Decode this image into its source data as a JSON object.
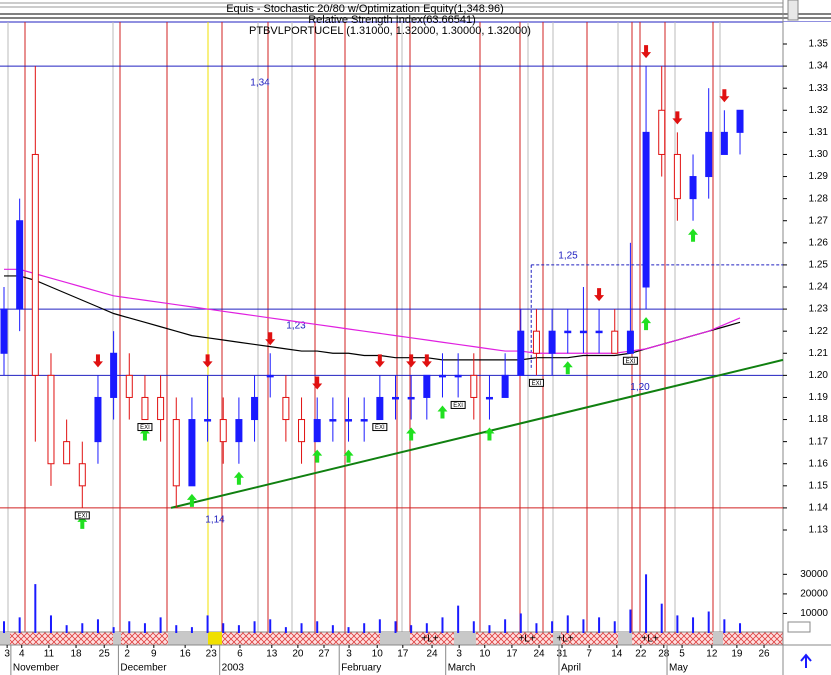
{
  "chart_data": {
    "type": "candlestick",
    "title": "Equis - Stochastic 20/80 w/Optimization Equity(1,348.96)",
    "subtitle": "Relative Strength Index(63.66541)",
    "symbol_label": "PTBVLPORTUCEL (1.31000, 1.32000, 1.30000, 1.32000)",
    "x": [
      0,
      3,
      6,
      9,
      12,
      15,
      18,
      21,
      24,
      27,
      30,
      33,
      36,
      39,
      42,
      45,
      48,
      51,
      54,
      57,
      60,
      63,
      66,
      69,
      72,
      75,
      78,
      81,
      84,
      87,
      90,
      93,
      96,
      99,
      102,
      105,
      108,
      111,
      114,
      117,
      120,
      123,
      126,
      129,
      132,
      135,
      138,
      141
    ],
    "open": [
      1.21,
      1.23,
      1.3,
      1.2,
      1.17,
      1.16,
      1.17,
      1.19,
      1.2,
      1.19,
      1.19,
      1.18,
      1.15,
      1.18,
      1.18,
      1.17,
      1.18,
      1.2,
      1.19,
      1.18,
      1.17,
      1.18,
      1.18,
      1.18,
      1.18,
      1.19,
      1.19,
      1.19,
      1.2,
      1.2,
      1.2,
      1.19,
      1.19,
      1.2,
      1.22,
      1.21,
      1.22,
      1.22,
      1.22,
      1.22,
      1.21,
      1.24,
      1.32,
      1.3,
      1.28,
      1.29,
      1.3,
      1.31
    ],
    "high": [
      1.24,
      1.28,
      1.34,
      1.21,
      1.18,
      1.17,
      1.2,
      1.22,
      1.21,
      1.2,
      1.2,
      1.19,
      1.19,
      1.2,
      1.19,
      1.19,
      1.2,
      1.21,
      1.2,
      1.19,
      1.19,
      1.19,
      1.19,
      1.19,
      1.2,
      1.2,
      1.2,
      1.2,
      1.21,
      1.21,
      1.21,
      1.2,
      1.21,
      1.23,
      1.23,
      1.23,
      1.23,
      1.24,
      1.23,
      1.23,
      1.26,
      1.34,
      1.34,
      1.31,
      1.3,
      1.33,
      1.32,
      1.32
    ],
    "low": [
      1.2,
      1.22,
      1.17,
      1.15,
      1.16,
      1.14,
      1.16,
      1.18,
      1.18,
      1.18,
      1.17,
      1.14,
      1.15,
      1.17,
      1.16,
      1.16,
      1.17,
      1.19,
      1.17,
      1.16,
      1.17,
      1.17,
      1.17,
      1.17,
      1.18,
      1.18,
      1.18,
      1.18,
      1.19,
      1.19,
      1.18,
      1.18,
      1.19,
      1.2,
      1.2,
      1.2,
      1.21,
      1.21,
      1.21,
      1.21,
      1.21,
      1.23,
      1.29,
      1.27,
      1.27,
      1.28,
      1.3,
      1.3
    ],
    "close": [
      1.23,
      1.27,
      1.2,
      1.16,
      1.16,
      1.15,
      1.19,
      1.21,
      1.19,
      1.18,
      1.18,
      1.15,
      1.18,
      1.18,
      1.17,
      1.18,
      1.19,
      1.2,
      1.18,
      1.17,
      1.18,
      1.18,
      1.18,
      1.18,
      1.19,
      1.19,
      1.19,
      1.2,
      1.2,
      1.2,
      1.19,
      1.19,
      1.2,
      1.22,
      1.21,
      1.22,
      1.22,
      1.22,
      1.22,
      1.21,
      1.22,
      1.31,
      1.3,
      1.28,
      1.29,
      1.31,
      1.31,
      1.32
    ],
    "up_color": "#1a1aff",
    "down_color": "#e01010",
    "xlim": [
      0,
      150
    ],
    "ylim": [
      1.13,
      1.35
    ],
    "yticks": [
      1.13,
      1.14,
      1.15,
      1.16,
      1.17,
      1.18,
      1.19,
      {
        "value": 1.2,
        "label": "1.20"
      },
      1.21,
      1.22,
      1.23,
      1.24,
      1.25,
      1.26,
      1.27,
      1.28,
      1.29,
      {
        "value": 1.3,
        "label": "1.30"
      },
      1.31,
      1.32,
      1.33,
      1.34,
      1.35
    ],
    "xticks": [
      {
        "value": 0.6,
        "label": "3"
      },
      {
        "value": 3.4,
        "label": "4"
      },
      {
        "value": 8.6,
        "label": "11"
      },
      {
        "value": 13.8,
        "label": "18"
      },
      {
        "value": 19.2,
        "label": "25"
      },
      {
        "value": 23.6,
        "label": "2"
      },
      {
        "value": 28.7,
        "label": "9"
      },
      {
        "value": 34.7,
        "label": "16"
      },
      {
        "value": 39.7,
        "label": "23"
      },
      {
        "value": 45.2,
        "label": "6"
      },
      {
        "value": 51.3,
        "label": "13"
      },
      {
        "value": 56.3,
        "label": "20"
      },
      {
        "value": 61.3,
        "label": "27"
      },
      {
        "value": 66.1,
        "label": "3"
      },
      {
        "value": 71.5,
        "label": "10"
      },
      {
        "value": 76.4,
        "label": "17"
      },
      {
        "value": 82,
        "label": "24"
      },
      {
        "value": 87.2,
        "label": "3"
      },
      {
        "value": 92.1,
        "label": "10"
      },
      {
        "value": 97.3,
        "label": "17"
      },
      {
        "value": 102.5,
        "label": "24"
      },
      {
        "value": 106.9,
        "label": "31"
      },
      {
        "value": 112.1,
        "label": "7"
      },
      {
        "value": 117.4,
        "label": "14"
      },
      {
        "value": 122,
        "label": "22"
      },
      {
        "value": 126.4,
        "label": "28"
      },
      {
        "value": 129.9,
        "label": "5"
      },
      {
        "value": 135.6,
        "label": "12"
      },
      {
        "value": 140.4,
        "label": "19"
      },
      {
        "value": 145.6,
        "label": "26"
      }
    ],
    "months": [
      {
        "value": 1.7,
        "label": "November"
      },
      {
        "value": 22.3,
        "label": "December"
      },
      {
        "value": 41.7,
        "label": "2003"
      },
      {
        "value": 64.6,
        "label": "February"
      },
      {
        "value": 85,
        "label": "March"
      },
      {
        "value": 106.7,
        "label": "April"
      },
      {
        "value": 127.4,
        "label": "May"
      }
    ],
    "moving_averages": [
      {
        "color": "#000000",
        "values": [
          1.245,
          1.245,
          1.243,
          1.24,
          1.237,
          1.234,
          1.231,
          1.228,
          1.226,
          1.224,
          1.222,
          1.22,
          1.218,
          1.217,
          1.216,
          1.215,
          1.214,
          1.213,
          1.212,
          1.211,
          1.211,
          1.21,
          1.21,
          1.209,
          1.209,
          1.208,
          1.208,
          1.208,
          1.207,
          1.207,
          1.207,
          1.207,
          1.207,
          1.207,
          1.208,
          1.208,
          1.208,
          1.209,
          1.209,
          1.209,
          1.21,
          1.212,
          1.214,
          1.216,
          1.218,
          1.22,
          1.222,
          1.224
        ]
      },
      {
        "color": "#e020e0",
        "values": [
          1.248,
          1.248,
          1.246,
          1.244,
          1.242,
          1.24,
          1.238,
          1.236,
          1.235,
          1.234,
          1.233,
          1.232,
          1.231,
          1.23,
          1.229,
          1.228,
          1.227,
          1.226,
          1.225,
          1.224,
          1.223,
          1.222,
          1.221,
          1.22,
          1.219,
          1.218,
          1.217,
          1.216,
          1.215,
          1.214,
          1.213,
          1.212,
          1.211,
          1.211,
          1.21,
          1.21,
          1.21,
          1.21,
          1.21,
          1.21,
          1.211,
          1.212,
          1.214,
          1.216,
          1.218,
          1.22,
          1.223,
          1.226
        ]
      }
    ],
    "levels": [
      {
        "value": 1.34,
        "label": "1,34"
      },
      {
        "value": 1.23,
        "label": "1,23"
      },
      {
        "value": 1.2,
        "label": "1,20"
      },
      {
        "value": 1.14,
        "label": "1,14"
      }
    ],
    "level_color": "#2020c0",
    "resistance": {
      "value": 1.25,
      "label": "1,25",
      "start": 101
    },
    "trendline": {
      "x": [
        32,
        150
      ],
      "y": [
        1.14,
        1.207
      ],
      "color": "#108010"
    },
    "buy_signals": [
      5,
      9,
      12,
      15,
      20,
      22,
      26,
      28,
      31,
      36,
      41,
      44
    ],
    "sell_signals": [
      6,
      13,
      17,
      20,
      24,
      26,
      27,
      38,
      41,
      43,
      46
    ],
    "exit_markers": {
      "label": "EXI",
      "bars": [
        5,
        9,
        24,
        29,
        34,
        40
      ]
    },
    "strip_labels": [
      "+L+",
      "+L+",
      "+L+",
      "+L+"
    ],
    "volume": {
      "values": [
        6000,
        8000,
        25000,
        9000,
        4000,
        5000,
        7000,
        3000,
        6000,
        5000,
        8000,
        4000,
        3000,
        9000,
        5000,
        4000,
        6000,
        7000,
        3000,
        5000,
        6000,
        4000,
        3000,
        5000,
        7000,
        6000,
        4000,
        5000,
        8000,
        14000,
        6000,
        4000,
        7000,
        10000,
        5000,
        6000,
        9000,
        7000,
        8000,
        6000,
        12000,
        30000,
        15000,
        9000,
        8000,
        11000,
        7000,
        5000
      ],
      "color": "#1a1aff",
      "ylim": [
        0,
        45000
      ],
      "yticks": [
        10000,
        20000,
        30000
      ]
    }
  }
}
